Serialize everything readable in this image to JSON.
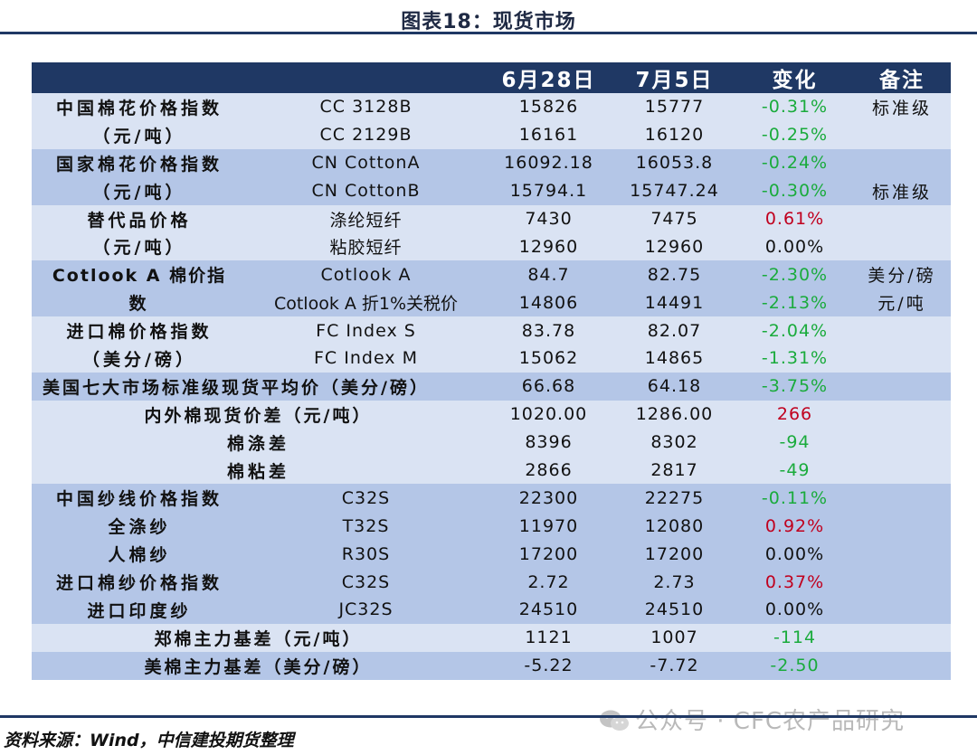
{
  "title": "图表18：现货市场",
  "header": {
    "col1": "",
    "col2": "",
    "date1": "6月28日",
    "date2": "7月5日",
    "change": "变化",
    "note": "备注"
  },
  "rows": [
    {
      "group": "中国棉花价格指数",
      "item": "CC 3128B",
      "v1": "15826",
      "v2": "15777",
      "chg": "-0.31%",
      "note": "标准级"
    },
    {
      "group": "（元/吨）",
      "item": "CC 2129B",
      "v1": "16161",
      "v2": "16120",
      "chg": "-0.25%",
      "note": ""
    },
    {
      "group": "国家棉花价格指数",
      "item": "CN CottonA",
      "v1": "16092.18",
      "v2": "16053.8",
      "chg": "-0.24%",
      "note": ""
    },
    {
      "group": "（元/吨）",
      "item": "CN CottonB",
      "v1": "15794.1",
      "v2": "15747.24",
      "chg": "-0.30%",
      "note": "标准级"
    },
    {
      "group": "替代品价格",
      "item": "涤纶短纤",
      "v1": "7430",
      "v2": "7475",
      "chg": "0.61%",
      "note": ""
    },
    {
      "group": "（元/吨）",
      "item": "粘胶短纤",
      "v1": "12960",
      "v2": "12960",
      "chg": "0.00%",
      "note": ""
    },
    {
      "group": "Cotlook A 棉价指",
      "item": "Cotlook A",
      "v1": "84.7",
      "v2": "82.75",
      "chg": "-2.30%",
      "note": "美分/磅"
    },
    {
      "group": "数",
      "item": "Cotlook A 折1%关税价",
      "v1": "14806",
      "v2": "14491",
      "chg": "-2.13%",
      "note": "元/吨"
    },
    {
      "group": "进口棉价格指数",
      "item": "FC Index S",
      "v1": "83.78",
      "v2": "82.07",
      "chg": "-2.04%",
      "note": ""
    },
    {
      "group": "（美分/磅）",
      "item": "FC Index M",
      "v1": "15062",
      "v2": "14865",
      "chg": "-1.31%",
      "note": ""
    },
    {
      "group": "美国七大市场标准级现货平均价（美分/磅）",
      "item": "",
      "v1": "66.68",
      "v2": "64.18",
      "chg": "-3.75%",
      "note": ""
    },
    {
      "group": "内外棉现货价差（元/吨）",
      "item": "",
      "v1": "1020.00",
      "v2": "1286.00",
      "chg": "266",
      "note": ""
    },
    {
      "group": "棉涤差",
      "item": "",
      "v1": "8396",
      "v2": "8302",
      "chg": "-94",
      "note": ""
    },
    {
      "group": "棉粘差",
      "item": "",
      "v1": "2866",
      "v2": "2817",
      "chg": "-49",
      "note": ""
    },
    {
      "group": "中国纱线价格指数",
      "item": "C32S",
      "v1": "22300",
      "v2": "22275",
      "chg": "-0.11%",
      "note": ""
    },
    {
      "group": "全涤纱",
      "item": "T32S",
      "v1": "11970",
      "v2": "12080",
      "chg": "0.92%",
      "note": ""
    },
    {
      "group": "人棉纱",
      "item": "R30S",
      "v1": "17200",
      "v2": "17200",
      "chg": "0.00%",
      "note": ""
    },
    {
      "group": "进口棉纱价格指数",
      "item": "C32S",
      "v1": "2.72",
      "v2": "2.73",
      "chg": "0.37%",
      "note": ""
    },
    {
      "group": "进口印度纱",
      "item": "JC32S",
      "v1": "24510",
      "v2": "24510",
      "chg": "0.00%",
      "note": ""
    },
    {
      "group": "郑棉主力基差（元/吨）",
      "item": "",
      "v1": "1121",
      "v2": "1007",
      "chg": "-114",
      "note": ""
    },
    {
      "group": "美棉主力基差（美分/磅）",
      "item": "",
      "v1": "-5.22",
      "v2": "-7.72",
      "chg": "-2.50",
      "note": ""
    }
  ],
  "source": "资料来源：Wind，中信建投期货整理",
  "watermark": "公众号 · CFC农产品研究",
  "colors": {
    "header_bg": "#1f3864",
    "band_dark": "#b4c6e7",
    "band_light": "#dae3f3",
    "negative": "#1aab3c",
    "positive": "#c0001e"
  }
}
